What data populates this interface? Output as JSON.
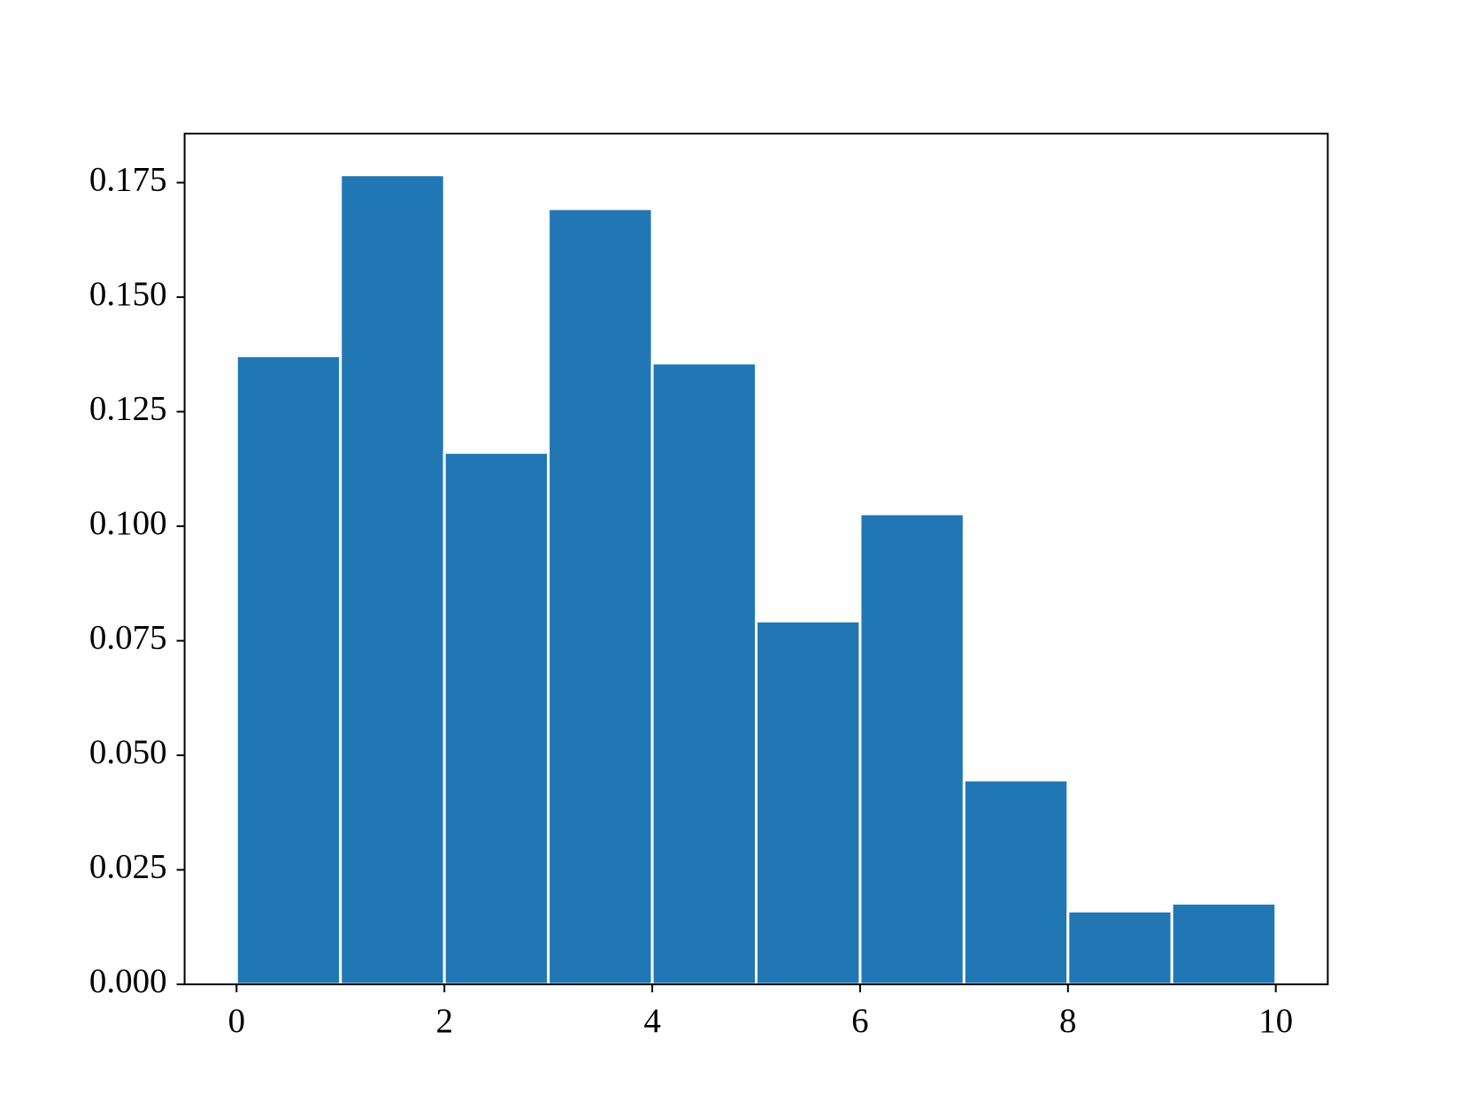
{
  "chart_data": {
    "type": "histogram",
    "bins": [
      0,
      1,
      2,
      3,
      4,
      5,
      6,
      7,
      8,
      9,
      10
    ],
    "values": [
      0.1372,
      0.1767,
      0.1161,
      0.1693,
      0.1356,
      0.0793,
      0.1027,
      0.0446,
      0.016,
      0.0177
    ],
    "color": "#2077b4",
    "xlim": [
      -0.5,
      10.5
    ],
    "xticks": [
      0,
      2,
      4,
      6,
      8,
      10
    ],
    "ylim": [
      0,
      0.1857
    ],
    "yticks": [
      {
        "value": 0,
        "label": "0.000"
      },
      {
        "value": 0.025,
        "label": "0.025"
      },
      {
        "value": 0.05,
        "label": "0.050"
      },
      {
        "value": 0.075,
        "label": "0.075"
      },
      {
        "value": 0.1,
        "label": "0.100"
      },
      {
        "value": 0.125,
        "label": "0.125"
      },
      {
        "value": 0.15,
        "label": "0.150"
      },
      {
        "value": 0.175,
        "label": "0.175"
      }
    ],
    "grid": false
  }
}
